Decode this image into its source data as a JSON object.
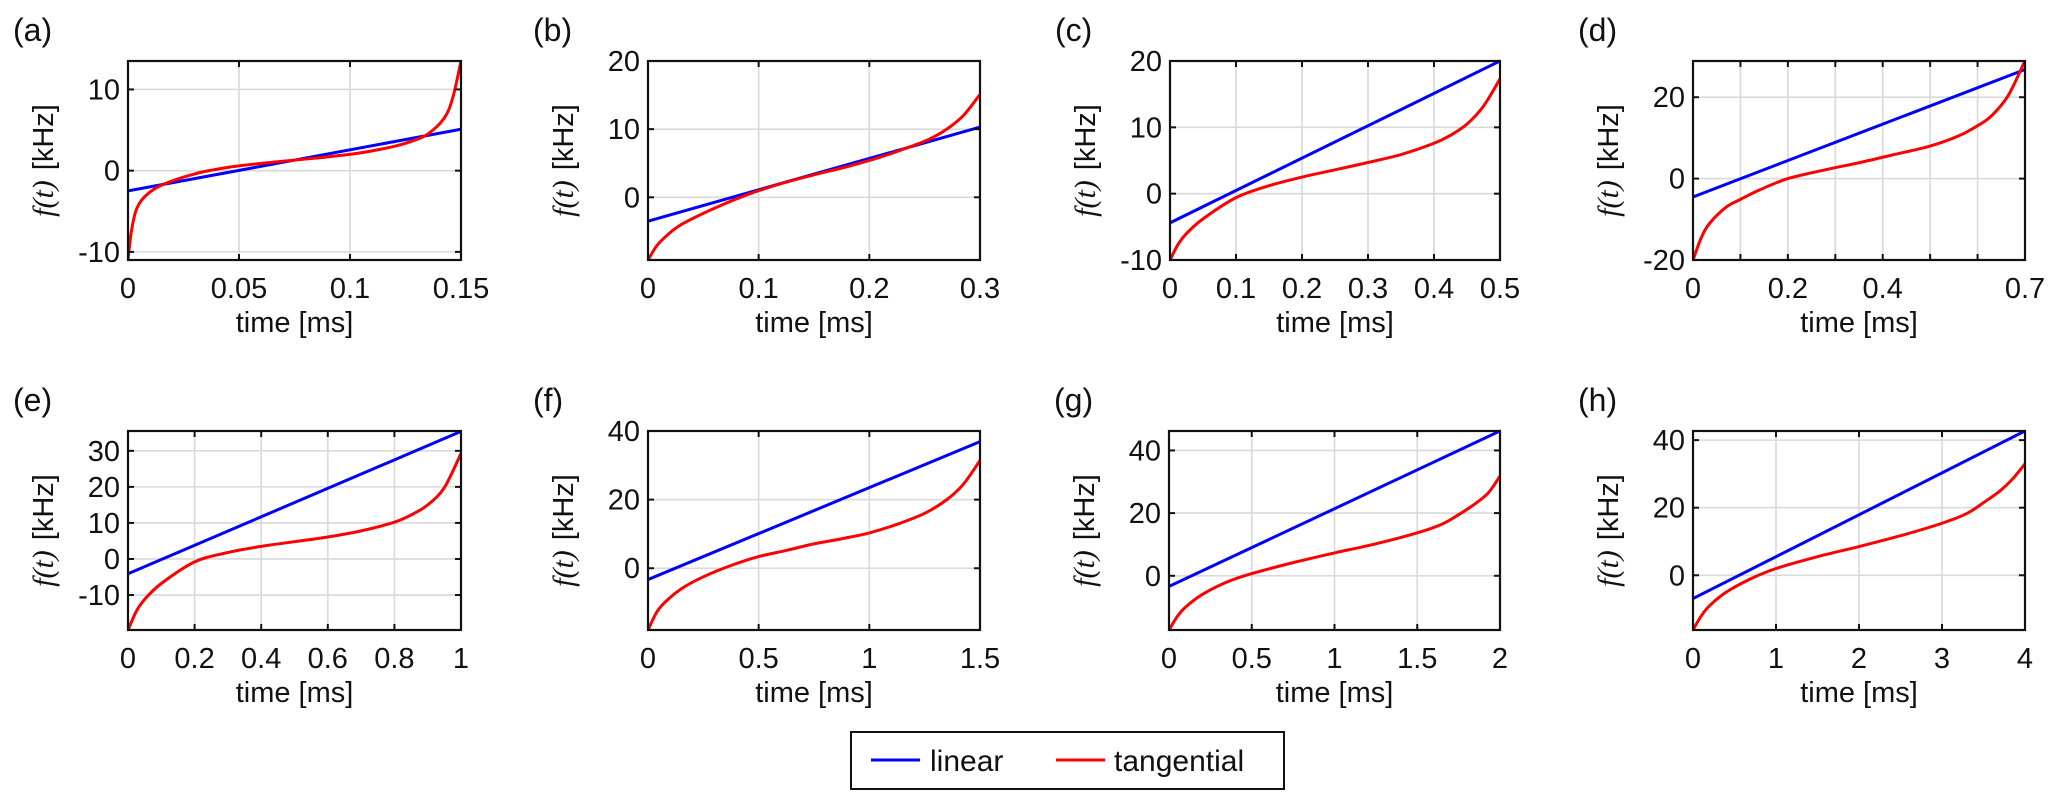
{
  "legend": {
    "items": [
      {
        "label": "linear",
        "color": "#0000ff"
      },
      {
        "label": "tangential",
        "color": "#ff0000"
      }
    ]
  },
  "axis_text": {
    "xlabel": "time [ms]",
    "ylabel_func": "f(t)",
    "ylabel_unit": "[kHz]"
  },
  "chart_data": [
    {
      "type": "line",
      "panel": "(a)",
      "title": "",
      "xlabel": "time [ms]",
      "ylabel": "f(t) [kHz]",
      "xlim": [
        0,
        0.15
      ],
      "ylim": [
        -11,
        13.5
      ],
      "xticks": [
        0,
        0.05,
        0.1,
        0.15
      ],
      "xticklabels": [
        "0",
        "0.05",
        "0.1",
        "0.15"
      ],
      "xgrid": [
        0.05,
        0.1
      ],
      "yticks": [
        -10,
        0,
        10
      ],
      "yticklabels": [
        "-10",
        "0",
        "10"
      ],
      "grid": true,
      "series": [
        {
          "name": "linear",
          "color": "#0000ff",
          "x": [
            0,
            0.15
          ],
          "y": [
            -2.5,
            5.1
          ]
        },
        {
          "name": "tangential",
          "color": "#ff0000",
          "x": [
            0,
            0.0015,
            0.00375,
            0.0075,
            0.015,
            0.03,
            0.045,
            0.06,
            0.075,
            0.09,
            0.105,
            0.12,
            0.1275,
            0.135,
            0.1425,
            0.1463,
            0.15
          ],
          "y": [
            -11,
            -7.5,
            -4.8,
            -3.2,
            -1.8,
            -0.4,
            0.4,
            0.9,
            1.3,
            1.7,
            2.2,
            3.0,
            3.6,
            4.5,
            6.5,
            9.0,
            13.5
          ]
        }
      ]
    },
    {
      "type": "line",
      "panel": "(b)",
      "title": "",
      "xlabel": "time [ms]",
      "ylabel": "f(t) [kHz]",
      "xlim": [
        0,
        0.3
      ],
      "ylim": [
        -9.2,
        20
      ],
      "xticks": [
        0,
        0.1,
        0.2,
        0.3
      ],
      "xticklabels": [
        "0",
        "0.1",
        "0.2",
        "0.3"
      ],
      "xgrid": [
        0.1,
        0.2
      ],
      "yticks": [
        0,
        10,
        20
      ],
      "yticklabels": [
        "0",
        "10",
        "20"
      ],
      "grid": true,
      "series": [
        {
          "name": "linear",
          "color": "#0000ff",
          "x": [
            0,
            0.3
          ],
          "y": [
            -3.5,
            10.3
          ]
        },
        {
          "name": "tangential",
          "color": "#ff0000",
          "x": [
            0,
            0.0075,
            0.015,
            0.03,
            0.06,
            0.09,
            0.12,
            0.15,
            0.18,
            0.21,
            0.24,
            0.255,
            0.27,
            0.285,
            0.3
          ],
          "y": [
            -9.2,
            -7.2,
            -5.9,
            -4.0,
            -1.6,
            0.4,
            2.0,
            3.3,
            4.5,
            5.9,
            7.6,
            8.6,
            10.0,
            12.0,
            15.1
          ]
        }
      ]
    },
    {
      "type": "line",
      "panel": "(c)",
      "title": "",
      "xlabel": "time [ms]",
      "ylabel": "f(t) [kHz]",
      "xlim": [
        0,
        0.5
      ],
      "ylim": [
        -10,
        20
      ],
      "xticks": [
        0,
        0.1,
        0.2,
        0.3,
        0.4,
        0.5
      ],
      "xticklabels": [
        "0",
        "0.1",
        "0.2",
        "0.3",
        "0.4",
        "0.5"
      ],
      "xgrid": [
        0.1,
        0.2,
        0.3,
        0.4
      ],
      "yticks": [
        -10,
        0,
        10,
        20
      ],
      "yticklabels": [
        "-10",
        "0",
        "10",
        "20"
      ],
      "grid": true,
      "series": [
        {
          "name": "linear",
          "color": "#0000ff",
          "x": [
            0,
            0.5
          ],
          "y": [
            -4.4,
            20
          ]
        },
        {
          "name": "tangential",
          "color": "#ff0000",
          "x": [
            0,
            0.0125,
            0.025,
            0.05,
            0.1,
            0.15,
            0.2,
            0.25,
            0.3,
            0.35,
            0.4,
            0.425,
            0.45,
            0.475,
            0.5
          ],
          "y": [
            -10,
            -7.6,
            -6.0,
            -3.8,
            -0.6,
            1.2,
            2.5,
            3.6,
            4.7,
            5.9,
            7.6,
            8.8,
            10.5,
            13.2,
            17.3
          ]
        }
      ]
    },
    {
      "type": "line",
      "panel": "(d)",
      "title": "",
      "xlabel": "time [ms]",
      "ylabel": "f(t) [kHz]",
      "xlim": [
        0,
        0.7
      ],
      "ylim": [
        -20,
        28.9
      ],
      "xticks": [
        0,
        0.2,
        0.4,
        0.7
      ],
      "xticklabels": [
        "0",
        "0.2",
        "0.4",
        "0.7"
      ],
      "xgrid": [
        0.1,
        0.2,
        0.3,
        0.4,
        0.5,
        0.6
      ],
      "yticks": [
        -20,
        0,
        20
      ],
      "yticklabels": [
        "-20",
        "0",
        "20"
      ],
      "grid": true,
      "series": [
        {
          "name": "linear",
          "color": "#0000ff",
          "x": [
            0,
            0.7
          ],
          "y": [
            -4.5,
            26.8
          ]
        },
        {
          "name": "tangential",
          "color": "#ff0000",
          "x": [
            0,
            0.0175,
            0.035,
            0.07,
            0.1,
            0.14,
            0.2,
            0.28,
            0.35,
            0.42,
            0.5,
            0.56,
            0.6,
            0.63,
            0.665,
            0.7
          ],
          "y": [
            -20,
            -14.5,
            -11.0,
            -7.0,
            -5.1,
            -2.8,
            0,
            2.2,
            3.9,
            5.8,
            8.0,
            10.5,
            13.0,
            15.5,
            20.5,
            29.0
          ]
        }
      ]
    },
    {
      "type": "line",
      "panel": "(e)",
      "title": "",
      "xlabel": "time [ms]",
      "ylabel": "f(t) [kHz]",
      "xlim": [
        0,
        1
      ],
      "ylim": [
        -19.7,
        35.5
      ],
      "xticks": [
        0,
        0.2,
        0.4,
        0.6,
        0.8,
        1
      ],
      "xticklabels": [
        "0",
        "0.2",
        "0.4",
        "0.6",
        "0.8",
        "1"
      ],
      "xgrid": [
        0.2,
        0.4,
        0.6,
        0.8
      ],
      "yticks": [
        -10,
        0,
        10,
        20,
        30
      ],
      "yticklabels": [
        "-10",
        "0",
        "10",
        "20",
        "30"
      ],
      "grid": true,
      "series": [
        {
          "name": "linear",
          "color": "#0000ff",
          "x": [
            0,
            1
          ],
          "y": [
            -4.1,
            35.4
          ]
        },
        {
          "name": "tangential",
          "color": "#ff0000",
          "x": [
            0,
            0.025,
            0.05,
            0.1,
            0.2,
            0.3,
            0.4,
            0.5,
            0.6,
            0.7,
            0.8,
            0.85,
            0.9,
            0.95,
            1
          ],
          "y": [
            -19.7,
            -14.5,
            -11.2,
            -6.8,
            -0.8,
            1.8,
            3.5,
            4.8,
            6.1,
            7.8,
            10.2,
            12.2,
            15.0,
            19.8,
            29.3
          ]
        }
      ]
    },
    {
      "type": "line",
      "panel": "(f)",
      "title": "",
      "xlabel": "time [ms]",
      "ylabel": "f(t) [kHz]",
      "xlim": [
        0,
        1.5
      ],
      "ylim": [
        -18,
        40
      ],
      "xticks": [
        0,
        0.5,
        1,
        1.5
      ],
      "xticklabels": [
        "0",
        "0.5",
        "1",
        "1.5"
      ],
      "xgrid": [
        0.5,
        1
      ],
      "yticks": [
        0,
        20,
        40
      ],
      "yticklabels": [
        "0",
        "20",
        "40"
      ],
      "grid": true,
      "series": [
        {
          "name": "linear",
          "color": "#0000ff",
          "x": [
            0,
            1.5
          ],
          "y": [
            -3.3,
            36.9
          ]
        },
        {
          "name": "tangential",
          "color": "#ff0000",
          "x": [
            0,
            0.0375,
            0.075,
            0.15,
            0.25,
            0.375,
            0.5,
            0.625,
            0.75,
            0.875,
            1,
            1.125,
            1.25,
            1.35,
            1.425,
            1.5
          ],
          "y": [
            -18,
            -13.0,
            -10.0,
            -6.0,
            -2.5,
            0.8,
            3.4,
            5.2,
            7.1,
            8.6,
            10.3,
            12.8,
            16.0,
            20.0,
            24.5,
            31.4
          ]
        }
      ]
    },
    {
      "type": "line",
      "panel": "(g)",
      "title": "",
      "xlabel": "time [ms]",
      "ylabel": "f(t) [kHz]",
      "xlim": [
        0,
        2
      ],
      "ylim": [
        -17.3,
        46.2
      ],
      "xticks": [
        0,
        0.5,
        1,
        1.5,
        2
      ],
      "xticklabels": [
        "0",
        "0.5",
        "1",
        "1.5",
        "2"
      ],
      "xgrid": [
        0.5,
        1,
        1.5
      ],
      "yticks": [
        0,
        20,
        40
      ],
      "yticklabels": [
        "0",
        "20",
        "40"
      ],
      "grid": true,
      "series": [
        {
          "name": "linear",
          "color": "#0000ff",
          "x": [
            0,
            2
          ],
          "y": [
            -3.4,
            46.2
          ]
        },
        {
          "name": "tangential",
          "color": "#ff0000",
          "x": [
            0,
            0.05,
            0.1,
            0.2,
            0.35,
            0.5,
            0.75,
            1,
            1.25,
            1.5,
            1.65,
            1.75,
            1.85,
            1.93,
            2
          ],
          "y": [
            -17.3,
            -13.0,
            -10.0,
            -6.0,
            -2.0,
            0.7,
            4.2,
            7.3,
            10.2,
            13.7,
            16.5,
            19.5,
            23.0,
            26.5,
            31.8
          ]
        }
      ]
    },
    {
      "type": "line",
      "panel": "(h)",
      "title": "",
      "xlabel": "time [ms]",
      "ylabel": "f(t) [kHz]",
      "xlim": [
        0,
        4
      ],
      "ylim": [
        -16.2,
        42.7
      ],
      "xticks": [
        0,
        1,
        2,
        3,
        4
      ],
      "xticklabels": [
        "0",
        "1",
        "2",
        "3",
        "4"
      ],
      "xgrid": [
        1,
        2,
        3
      ],
      "yticks": [
        0,
        20,
        40
      ],
      "yticklabels": [
        "0",
        "20",
        "40"
      ],
      "grid": true,
      "series": [
        {
          "name": "linear",
          "color": "#0000ff",
          "x": [
            0,
            4
          ],
          "y": [
            -6.9,
            42.7
          ]
        },
        {
          "name": "tangential",
          "color": "#ff0000",
          "x": [
            0,
            0.1,
            0.2,
            0.4,
            0.7,
            1,
            1.5,
            2,
            2.5,
            3,
            3.3,
            3.5,
            3.7,
            3.85,
            4
          ],
          "y": [
            -16.2,
            -12.0,
            -9.0,
            -5.0,
            -1.0,
            2.0,
            5.5,
            8.5,
            11.7,
            15.4,
            18.3,
            21.5,
            25.0,
            28.5,
            33.0
          ]
        }
      ]
    }
  ]
}
